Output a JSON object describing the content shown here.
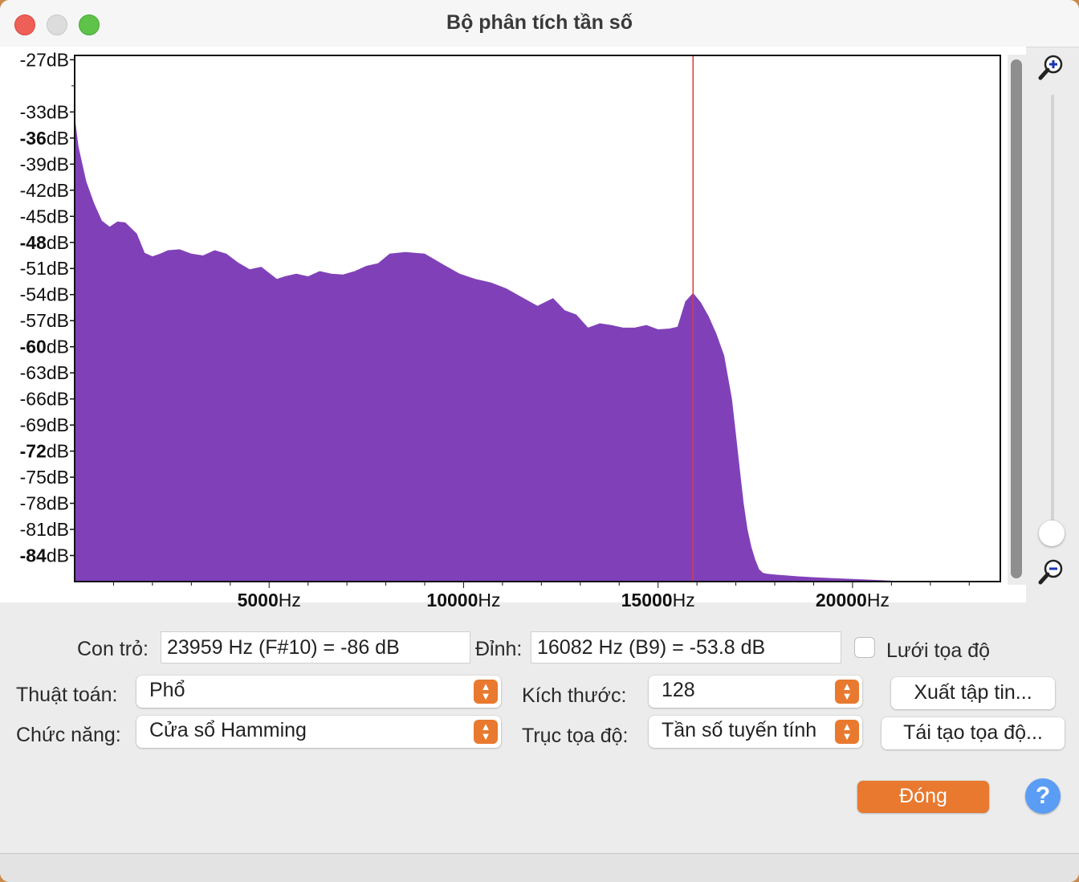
{
  "window": {
    "title": "Bộ phân tích tần số"
  },
  "chart_data": {
    "type": "area",
    "title": "",
    "xlabel": "Hz",
    "ylabel": "dB",
    "xlim": [
      0,
      23800
    ],
    "ylim": [
      -87,
      -26.5
    ],
    "y_ticks": [
      {
        "label": "-27dB",
        "bold": "",
        "rest": ""
      },
      {
        "label": "-33dB",
        "bold": "",
        "rest": ""
      },
      {
        "label": "",
        "bold": "-36",
        "rest": "dB"
      },
      {
        "label": "-39dB",
        "bold": "",
        "rest": ""
      },
      {
        "label": "-42dB",
        "bold": "",
        "rest": ""
      },
      {
        "label": "-45dB",
        "bold": "",
        "rest": ""
      },
      {
        "label": "",
        "bold": "-48",
        "rest": "dB"
      },
      {
        "label": "-51dB",
        "bold": "",
        "rest": ""
      },
      {
        "label": "-54dB",
        "bold": "",
        "rest": ""
      },
      {
        "label": "-57dB",
        "bold": "",
        "rest": ""
      },
      {
        "label": "",
        "bold": "-60",
        "rest": "dB"
      },
      {
        "label": "-63dB",
        "bold": "",
        "rest": ""
      },
      {
        "label": "-66dB",
        "bold": "",
        "rest": ""
      },
      {
        "label": "-69dB",
        "bold": "",
        "rest": ""
      },
      {
        "label": "",
        "bold": "-72",
        "rest": "dB"
      },
      {
        "label": "-75dB",
        "bold": "",
        "rest": ""
      },
      {
        "label": "-78dB",
        "bold": "",
        "rest": ""
      },
      {
        "label": "-81dB",
        "bold": "",
        "rest": ""
      },
      {
        "label": "",
        "bold": "-84",
        "rest": "dB"
      }
    ],
    "y_tick_values": [
      -27,
      -33,
      -36,
      -39,
      -42,
      -45,
      -48,
      -51,
      -54,
      -57,
      -60,
      -63,
      -66,
      -69,
      -72,
      -75,
      -78,
      -81,
      -84
    ],
    "x_ticks": [
      {
        "value": 5000,
        "bold": "5000",
        "rest": "Hz"
      },
      {
        "value": 10000,
        "bold": "10000",
        "rest": "Hz"
      },
      {
        "value": 15000,
        "bold": "15000",
        "rest": "Hz"
      },
      {
        "value": 20000,
        "bold": "20000",
        "rest": "Hz"
      }
    ],
    "series": [
      {
        "x": [
          0,
          100,
          300,
          500,
          700,
          900,
          1100,
          1300,
          1600,
          1800,
          2000,
          2200,
          2400,
          2700,
          3000,
          3300,
          3600,
          3900,
          4200,
          4500,
          4800,
          5000,
          5200,
          5400,
          5700,
          6000,
          6300,
          6600,
          6900,
          7200,
          7500,
          7800,
          8100,
          8500,
          9000,
          9500,
          9900,
          10300,
          10700,
          11100,
          11500,
          11900,
          12300,
          12600,
          12900,
          13200,
          13500,
          13800,
          14100,
          14400,
          14700,
          15000,
          15300,
          15500,
          15700,
          15900,
          16100,
          16300,
          16500,
          16700,
          16900,
          17000,
          17100,
          17200,
          17300,
          17400,
          17500,
          17600,
          17700,
          17800,
          18000,
          18300,
          18600,
          19000,
          19500,
          20000,
          20500,
          21000,
          21500,
          22000,
          22500,
          23000,
          23800
        ],
        "y": [
          -33.5,
          -37,
          -41,
          -43.5,
          -45.5,
          -46.2,
          -45.6,
          -45.7,
          -47,
          -49.2,
          -49.6,
          -49.3,
          -48.9,
          -48.8,
          -49.3,
          -49.5,
          -48.9,
          -49.3,
          -50.3,
          -51.1,
          -50.8,
          -51.5,
          -52.2,
          -51.9,
          -51.6,
          -51.9,
          -51.3,
          -51.6,
          -51.7,
          -51.3,
          -50.7,
          -50.4,
          -49.3,
          -49.1,
          -49.3,
          -50.6,
          -51.6,
          -52.2,
          -52.6,
          -53.3,
          -54.3,
          -55.3,
          -54.4,
          -55.8,
          -56.3,
          -57.8,
          -57.3,
          -57.5,
          -57.8,
          -57.8,
          -57.5,
          -58,
          -57.9,
          -57.7,
          -54.8,
          -53.8,
          -54.9,
          -56.5,
          -58.5,
          -61,
          -66,
          -70,
          -74,
          -78,
          -81,
          -83,
          -84.5,
          -85.6,
          -86,
          -86.1,
          -86.2,
          -86.3,
          -86.4,
          -86.5,
          -86.6,
          -86.7,
          -86.8,
          -86.9,
          -87,
          -87,
          -87,
          -87,
          -87
        ]
      }
    ],
    "cursor_x": 15900,
    "color": "#8041b8",
    "cursor_color": "#e53935"
  },
  "controls": {
    "cursor_label": "Con trỏ:",
    "cursor_value": "23959 Hz (F#10) = -86 dB",
    "peak_label": "Đỉnh:",
    "peak_value": "16082 Hz (B9) = -53.8 dB",
    "grid_label": "Lưới tọa độ",
    "algorithm_label": "Thuật toán:",
    "algorithm_value": "Phổ",
    "size_label": "Kích thước:",
    "size_value": "128",
    "function_label": "Chức năng:",
    "function_value": "Cửa sổ Hamming",
    "axis_label": "Trục tọa độ:",
    "axis_value": "Tần số tuyến tính",
    "export_button": "Xuất tập tin...",
    "replot_button": "Tái tạo tọa độ...",
    "close_button": "Đóng",
    "help_button": "?"
  },
  "icons": {
    "zoom_in": "zoom-in-icon",
    "zoom_out": "zoom-out-icon"
  }
}
